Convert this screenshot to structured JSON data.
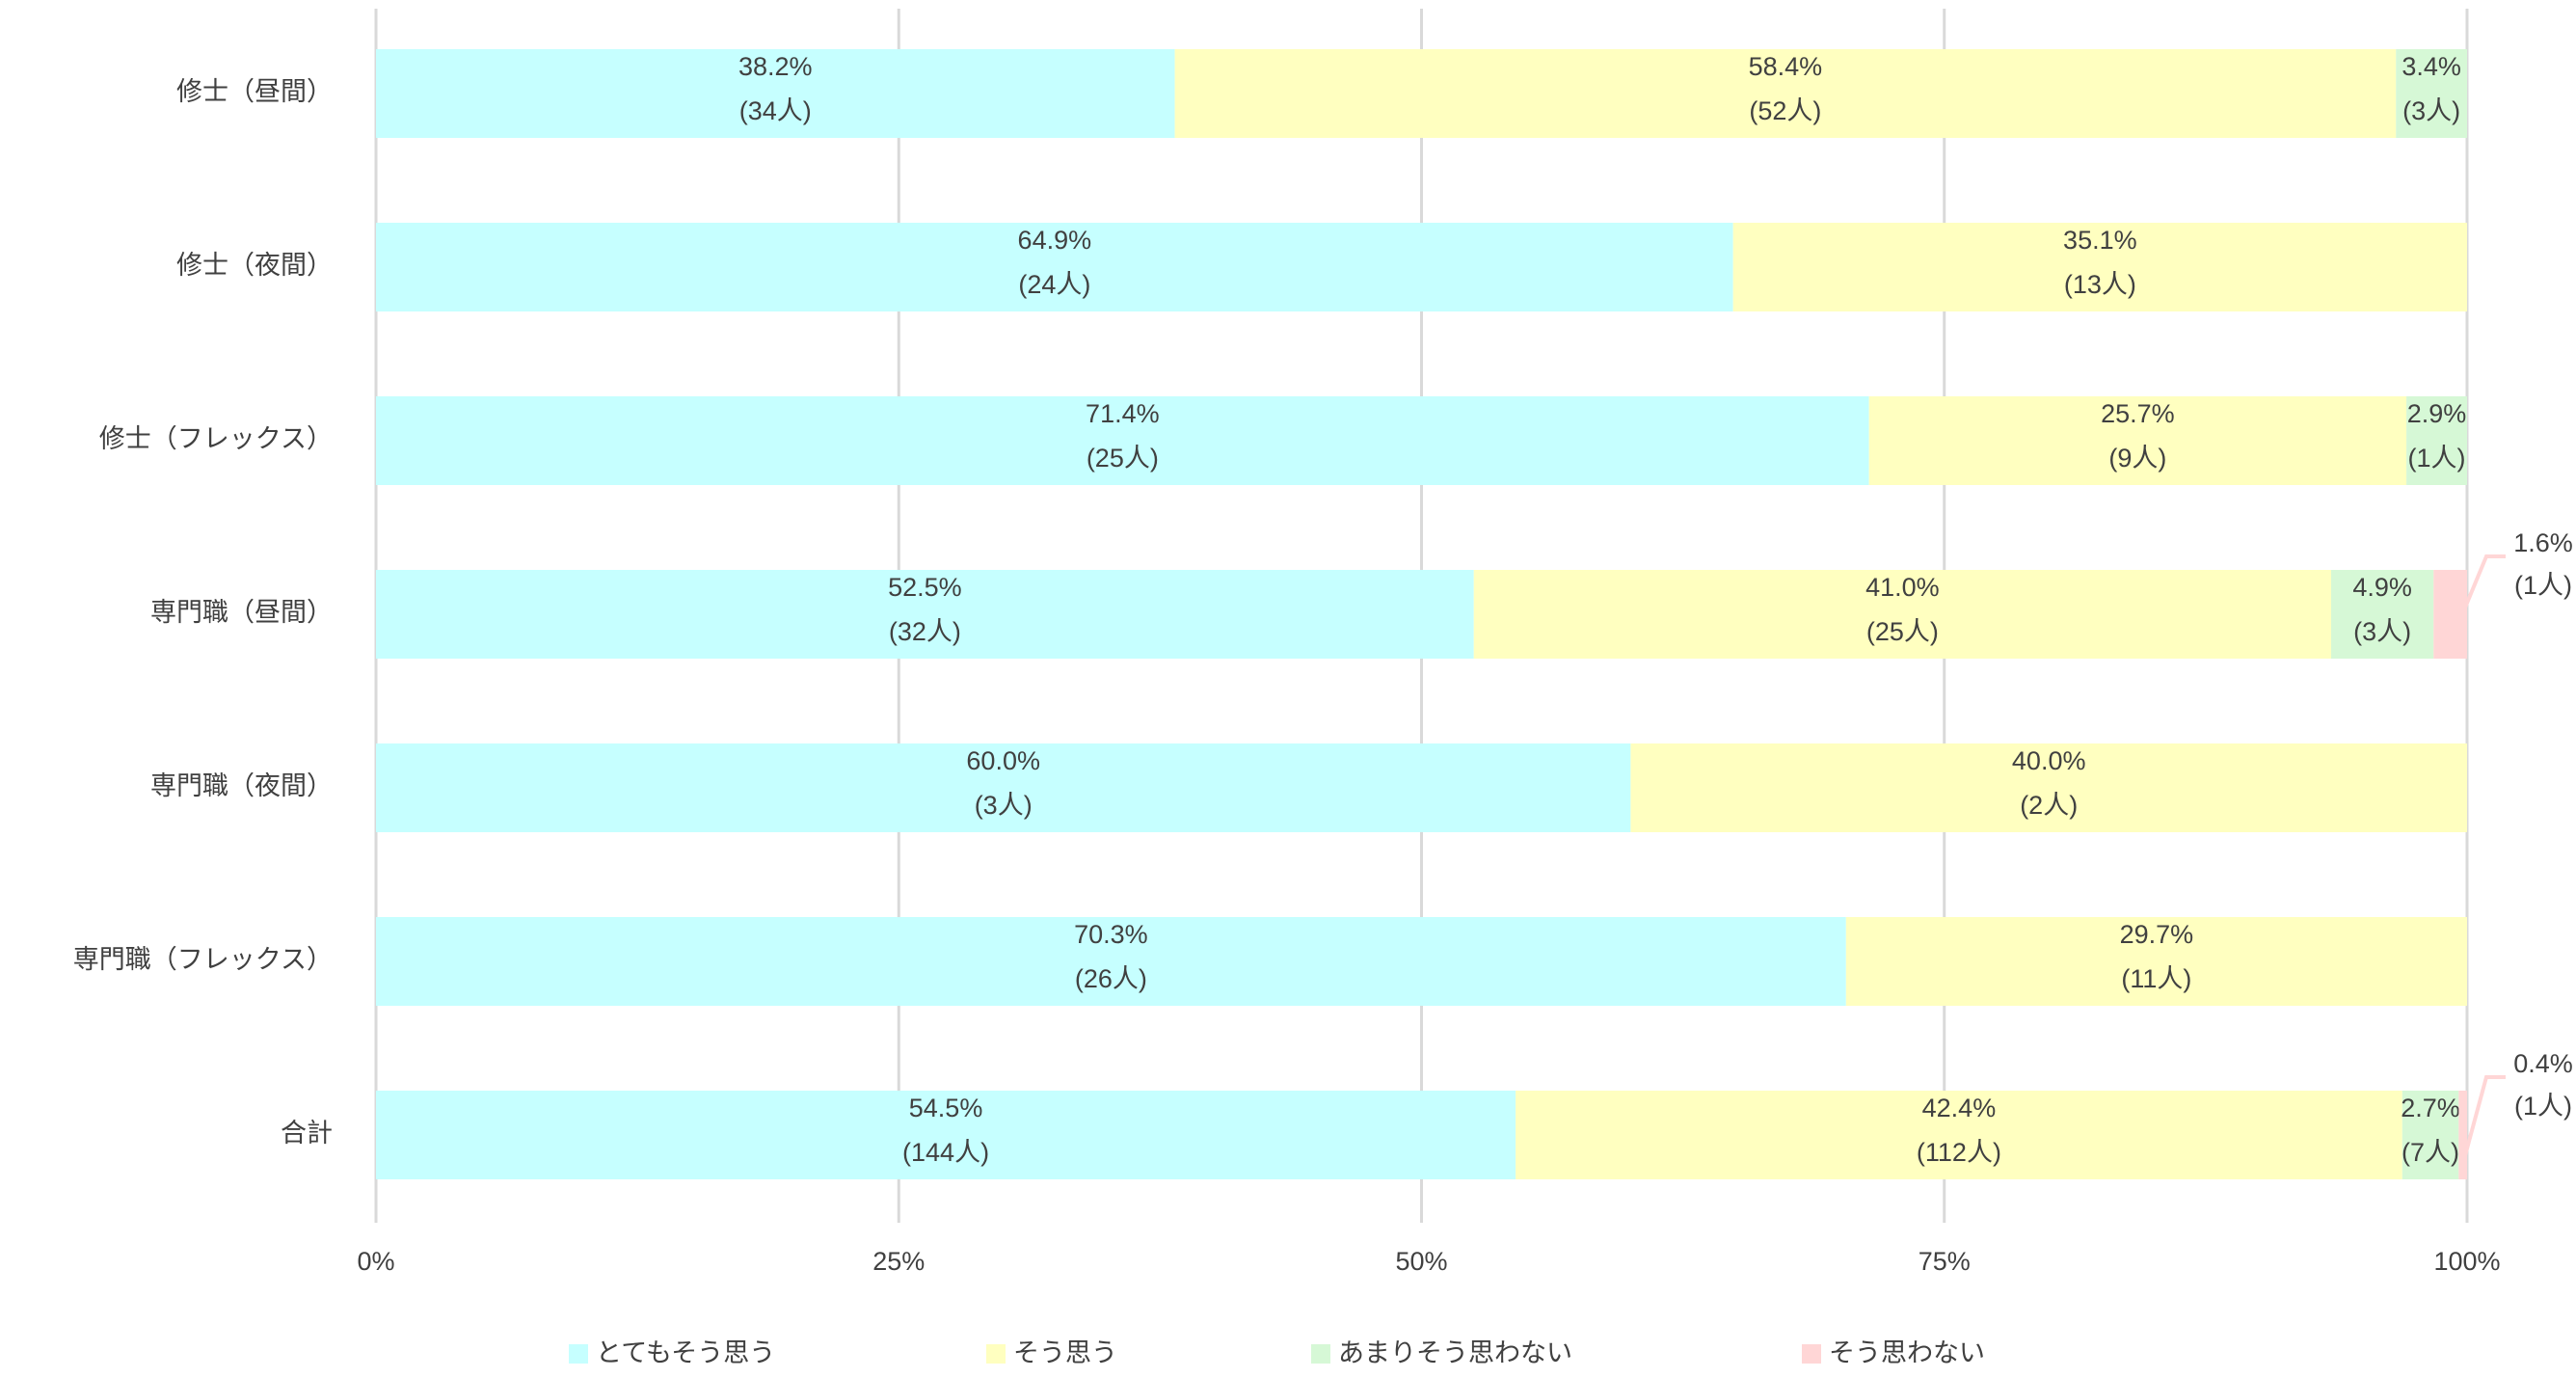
{
  "chart_data": {
    "type": "stacked-bar-100",
    "categories": [
      "修士（昼間）",
      "修士（夜間）",
      "修士（フレックス）",
      "専門職（昼間）",
      "専門職（夜間）",
      "専門職（フレックス）",
      "合計"
    ],
    "xlim": [
      0,
      100
    ],
    "xticks": [
      {
        "value": 0,
        "label": "0%"
      },
      {
        "value": 25,
        "label": "25%"
      },
      {
        "value": 50,
        "label": "50%"
      },
      {
        "value": 75,
        "label": "75%"
      },
      {
        "value": 100,
        "label": "100%"
      }
    ],
    "grid": true,
    "legend": "bottom",
    "series": [
      {
        "name": "とてもそう思う",
        "color": "#c6ffff",
        "values": [
          38.2,
          64.9,
          71.4,
          52.5,
          60.0,
          70.3,
          54.5
        ],
        "value_labels": [
          "38.2%",
          "64.9%",
          "71.4%",
          "52.5%",
          "60.0%",
          "70.3%",
          "54.5%"
        ],
        "count_labels": [
          "(34人)",
          "(24人)",
          "(25人)",
          "(32人)",
          "(3人)",
          "(26人)",
          "(144人)"
        ]
      },
      {
        "name": "そう思う",
        "color": "#ffffc0",
        "values": [
          58.4,
          35.1,
          25.7,
          41.0,
          40.0,
          29.7,
          42.4
        ],
        "value_labels": [
          "58.4%",
          "35.1%",
          "25.7%",
          "41.0%",
          "40.0%",
          "29.7%",
          "42.4%"
        ],
        "count_labels": [
          "(52人)",
          "(13人)",
          "(9人)",
          "(25人)",
          "(2人)",
          "(11人)",
          "(112人)"
        ]
      },
      {
        "name": "あまりそう思わない",
        "color": "#d6f8d6",
        "values": [
          3.4,
          null,
          2.9,
          4.9,
          null,
          null,
          2.7
        ],
        "value_labels": [
          "3.4%",
          null,
          "2.9%",
          "4.9%",
          null,
          null,
          "2.7%"
        ],
        "count_labels": [
          "(3人)",
          null,
          "(1人)",
          "(3人)",
          null,
          null,
          "(7人)"
        ]
      },
      {
        "name": "そう思わない",
        "color": "#ffd6d6",
        "values": [
          null,
          null,
          null,
          1.6,
          null,
          null,
          0.4
        ],
        "value_labels": [
          null,
          null,
          null,
          "1.6%",
          null,
          null,
          "0.4%"
        ],
        "count_labels": [
          null,
          null,
          null,
          "(1人)",
          null,
          null,
          "(1人)"
        ]
      }
    ]
  }
}
